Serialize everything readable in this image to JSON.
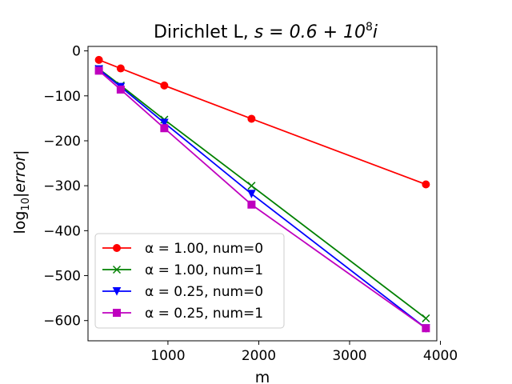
{
  "chart_data": {
    "type": "line",
    "title_prefix": "Dirichlet L, ",
    "title_math": "s = 0.6 + 10",
    "title_exp": "8",
    "title_suffix": "i",
    "xlabel": "m",
    "ylabel_main": "log",
    "ylabel_sub": "10",
    "ylabel_rest": "|error|",
    "xlim": [
      120,
      3960
    ],
    "ylim": [
      -645,
      10
    ],
    "x_ticks": [
      1000,
      2000,
      3000,
      4000
    ],
    "y_ticks": [
      0,
      -100,
      -200,
      -300,
      -400,
      -500,
      -600
    ],
    "x_tick_labels": [
      "1000",
      "2000",
      "3000",
      "4000"
    ],
    "y_tick_labels": [
      "0",
      "−100",
      "−200",
      "−300",
      "−400",
      "−500",
      "−600"
    ],
    "x": [
      240,
      480,
      960,
      1920,
      3840
    ],
    "legend_position": "lower-left",
    "series": [
      {
        "name": "α = 1.00, num=0",
        "color": "#ff0000",
        "marker": "circle",
        "values": [
          -20,
          -39,
          -77,
          -151,
          -297
        ]
      },
      {
        "name": "α = 1.00, num=1",
        "color": "#008000",
        "marker": "x",
        "values": [
          -40,
          -77,
          -153,
          -300,
          -595
        ]
      },
      {
        "name": "α = 0.25, num=0",
        "color": "#0000ff",
        "marker": "triangle-down",
        "values": [
          -41,
          -80,
          -160,
          -318,
          -617
        ]
      },
      {
        "name": "α = 0.25, num=1",
        "color": "#bf00bf",
        "marker": "square",
        "values": [
          -44,
          -86,
          -172,
          -342,
          -617
        ]
      }
    ]
  }
}
